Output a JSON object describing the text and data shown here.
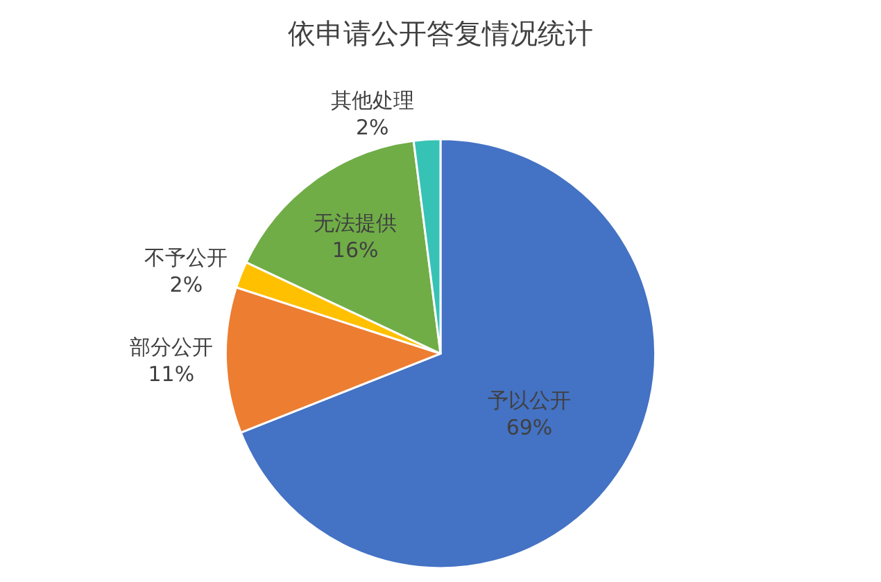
{
  "chart_data": {
    "type": "pie",
    "title": "依申请公开答复情况统计",
    "categories": [
      "予以公开",
      "部分公开",
      "不予公开",
      "无法提供",
      "其他处理"
    ],
    "values": [
      69,
      11,
      2,
      16,
      2
    ],
    "value_labels": [
      "69%",
      "11%",
      "2%",
      "16%",
      "2%"
    ],
    "colors": [
      "#4472c4",
      "#ed7d31",
      "#ffc000",
      "#70ad47",
      "#36c3b5"
    ],
    "legend": false
  }
}
